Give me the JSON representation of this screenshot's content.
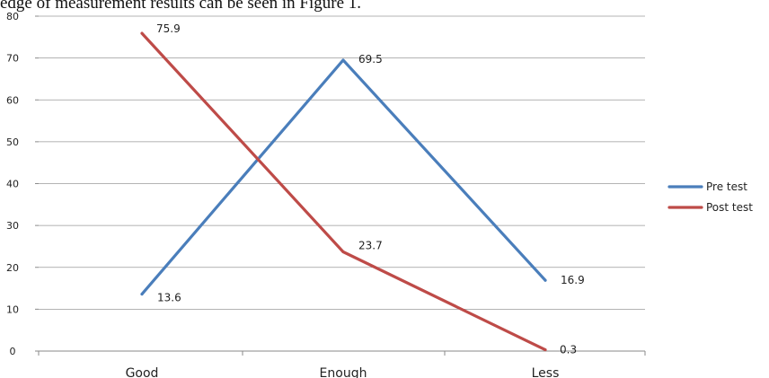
{
  "document": {
    "text_above_chart": "edge of measurement results can be seen in Figure 1."
  },
  "chart_data": {
    "type": "line",
    "title": "",
    "xlabel": "",
    "ylabel": "",
    "categories": [
      "Good",
      "Enough",
      "Less"
    ],
    "ylim": [
      0,
      80
    ],
    "yticks": [
      0,
      10,
      20,
      30,
      40,
      50,
      60,
      70,
      80
    ],
    "grid": true,
    "legend_position": "right",
    "series": [
      {
        "name": "Pre test",
        "values": [
          13.6,
          69.5,
          16.9
        ],
        "color": "#4A7EBB"
      },
      {
        "name": "Post test",
        "values": [
          75.9,
          23.7,
          0.3
        ],
        "color": "#BE4B48"
      }
    ]
  }
}
